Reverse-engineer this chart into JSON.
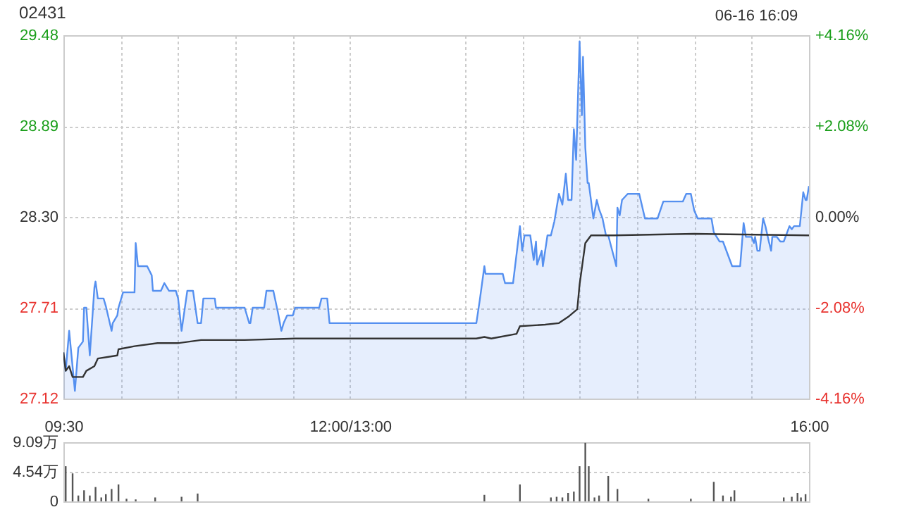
{
  "chart_data": [
    {
      "type": "line",
      "title": "02431",
      "annotations": [
        "06-16 16:09"
      ],
      "xlim": [
        9.5,
        16
      ],
      "xticks": [
        {
          "value": 9.5,
          "label": null
        },
        {
          "value": 10,
          "label": null
        },
        {
          "value": 10.5,
          "label": null
        },
        {
          "value": 11,
          "label": null
        },
        {
          "value": 11.5,
          "label": null
        },
        {
          "value": 12,
          "label": null
        },
        {
          "value": 13,
          "label": null
        },
        {
          "value": 13.5,
          "label": null
        },
        {
          "value": 14,
          "label": null
        },
        {
          "value": 14.5,
          "label": null
        },
        {
          "value": 15,
          "label": null
        },
        {
          "value": 15.5,
          "label": null
        },
        {
          "value": 16,
          "label": null
        }
      ],
      "ylim": [
        27.12,
        29.48
      ],
      "yticks": [
        27.12,
        27.71,
        {
          "value": 28.3,
          "label": "28.30"
        },
        28.89,
        29.48
      ],
      "y2lim": [
        -4.16,
        4.16
      ],
      "y2ticks": [
        {
          "value": -4.16,
          "label": "-4.16%"
        },
        {
          "value": -2.08,
          "label": "-2.08%"
        },
        {
          "value": 0,
          "label": "0.00%"
        },
        {
          "value": 2.08,
          "label": "+2.08%"
        },
        {
          "value": 4.16,
          "label": "+4.16%"
        }
      ],
      "grid": true,
      "tick_labels": "y",
      "series": [
        {
          "type": "area",
          "color": "#5590f0",
          "x": [
            9.5,
            9.52,
            9.55,
            9.6,
            9.63,
            9.67,
            9.68,
            9.7,
            9.73,
            9.77,
            9.78,
            9.8,
            9.85,
            9.87,
            9.92,
            9.93,
            9.97,
            9.98,
            10.02,
            10.12,
            10.13,
            10.15,
            10.23,
            10.27,
            10.28,
            10.35,
            10.38,
            10.42,
            10.48,
            10.5,
            10.53,
            10.58,
            10.63,
            10.67,
            10.7,
            10.72,
            10.82,
            10.83,
            11.08,
            11.12,
            11.13,
            11.15,
            11.25,
            11.27,
            11.33,
            11.37,
            11.4,
            11.42,
            11.45,
            11.5,
            11.52,
            11.73,
            11.75,
            11.8,
            11.82,
            13.1,
            13.13,
            13.17,
            13.18,
            13.33,
            13.35,
            13.42,
            13.48,
            13.5,
            13.52,
            13.57,
            13.6,
            13.62,
            13.63,
            13.67,
            13.68,
            13.72,
            13.75,
            13.78,
            13.82,
            13.85,
            13.88,
            13.9,
            13.93,
            13.95,
            13.97,
            14,
            14.02,
            14.03,
            14.05,
            14.07,
            14.08,
            14.12,
            14.15,
            14.17,
            14.2,
            14.23,
            14.25,
            14.32,
            14.33,
            14.35,
            14.37,
            14.42,
            14.52,
            14.57,
            14.68,
            14.73,
            14.9,
            14.93,
            14.97,
            15,
            15.03,
            15.15,
            15.17,
            15.22,
            15.25,
            15.33,
            15.4,
            15.43,
            15.45,
            15.5,
            15.52,
            15.53,
            15.55,
            15.57,
            15.6,
            15.62,
            15.65,
            15.67,
            15.68,
            15.72,
            15.75,
            15.78,
            15.83,
            15.85,
            15.87,
            15.92,
            15.95,
            15.97,
            15.98,
            16
          ],
          "values": [
            27.42,
            27.3,
            27.56,
            27.17,
            27.45,
            27.49,
            27.71,
            27.71,
            27.4,
            27.84,
            27.88,
            27.77,
            27.77,
            27.72,
            27.56,
            27.61,
            27.66,
            27.71,
            27.81,
            27.81,
            28.13,
            27.98,
            27.98,
            27.92,
            27.82,
            27.82,
            27.87,
            27.82,
            27.82,
            27.77,
            27.56,
            27.82,
            27.82,
            27.61,
            27.61,
            27.77,
            27.77,
            27.71,
            27.71,
            27.61,
            27.61,
            27.71,
            27.71,
            27.82,
            27.82,
            27.68,
            27.56,
            27.61,
            27.66,
            27.66,
            27.71,
            27.71,
            27.77,
            27.77,
            27.61,
            27.61,
            27.76,
            27.98,
            27.93,
            27.93,
            27.87,
            27.87,
            28.24,
            28.08,
            28.18,
            28.18,
            28.02,
            28.14,
            27.99,
            28.08,
            27.98,
            28.18,
            28.18,
            28.27,
            28.45,
            28.38,
            28.58,
            28.41,
            28.41,
            28.87,
            28.67,
            29.44,
            28.96,
            29.34,
            28.75,
            28.52,
            28.52,
            28.29,
            28.41,
            28.35,
            28.29,
            28.18,
            28.18,
            27.98,
            28.36,
            28.31,
            28.41,
            28.45,
            28.45,
            28.29,
            28.29,
            28.4,
            28.4,
            28.45,
            28.45,
            28.34,
            28.29,
            28.29,
            28.2,
            28.14,
            28.14,
            27.98,
            27.98,
            28.26,
            28.17,
            28.17,
            28.13,
            28.17,
            28.08,
            28.08,
            28.29,
            28.24,
            28.14,
            28.08,
            28.17,
            28.17,
            28.14,
            28.14,
            28.24,
            28.22,
            28.24,
            28.24,
            28.46,
            28.41,
            28.41,
            28.5
          ]
        },
        {
          "type": "line",
          "color": "#333333",
          "x": [
            9.5,
            9.52,
            9.55,
            9.58,
            9.67,
            9.7,
            9.77,
            9.8,
            9.97,
            9.98,
            10.12,
            10.32,
            10.5,
            10.7,
            11.08,
            11.52,
            13.1,
            13.17,
            13.23,
            13.45,
            13.48,
            13.7,
            13.82,
            13.9,
            13.98,
            14,
            14.05,
            14.1,
            14.3,
            15,
            16
          ],
          "values": [
            27.42,
            27.3,
            27.33,
            27.26,
            27.26,
            27.3,
            27.33,
            27.38,
            27.4,
            27.44,
            27.46,
            27.48,
            27.48,
            27.5,
            27.5,
            27.51,
            27.51,
            27.52,
            27.51,
            27.54,
            27.59,
            27.6,
            27.61,
            27.65,
            27.7,
            27.86,
            28.13,
            28.18,
            28.18,
            28.19,
            28.18
          ]
        }
      ]
    },
    {
      "type": "bar",
      "color": "#555555",
      "xlim": [
        9.5,
        16
      ],
      "xticks": [
        {
          "value": 9.5,
          "label": "09:30"
        },
        {
          "value": 12,
          "label": "12:00/13:00"
        },
        {
          "value": 16,
          "label": "16:00"
        }
      ],
      "ylim": [
        0,
        9.09
      ],
      "yticks": [
        0,
        {
          "value": 4.54,
          "label": "4.54万"
        },
        {
          "value": 9.09,
          "label": "9.09万"
        }
      ],
      "grid": "y",
      "x": [
        9.52,
        9.58,
        9.63,
        9.68,
        9.73,
        9.78,
        9.83,
        9.87,
        9.92,
        9.98,
        10.05,
        10.13,
        10.3,
        10.53,
        10.67,
        13.17,
        13.48,
        13.75,
        13.8,
        13.85,
        13.9,
        13.95,
        14,
        14.05,
        14.08,
        14.13,
        14.17,
        14.25,
        14.33,
        14.6,
        14.97,
        15.17,
        15.25,
        15.32,
        15.35,
        15.78,
        15.85,
        15.9,
        15.93,
        15.97
      ],
      "values": [
        5.4,
        4.3,
        0.9,
        1.7,
        0.9,
        2.2,
        0.6,
        1.1,
        1.9,
        2.6,
        0.4,
        0.3,
        0.6,
        0.7,
        1.2,
        1.0,
        2.6,
        0.6,
        0.7,
        0.6,
        1.3,
        1.5,
        5.4,
        9.0,
        5.4,
        0.6,
        0.9,
        3.9,
        1.9,
        0.4,
        0.4,
        3.0,
        0.9,
        0.7,
        1.7,
        0.6,
        0.7,
        1.3,
        0.6,
        1.1
      ]
    }
  ]
}
